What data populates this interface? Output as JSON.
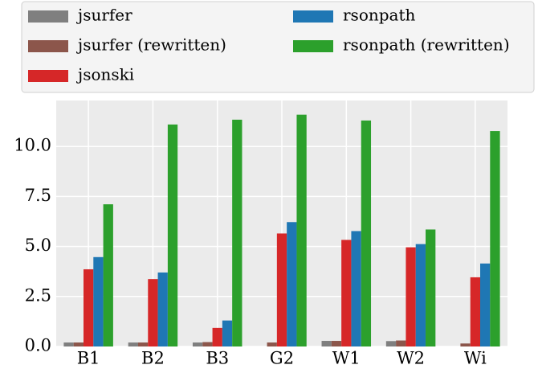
{
  "chart_data": {
    "type": "bar",
    "categories": [
      "B1",
      "B2",
      "B3",
      "G2",
      "W1",
      "W2",
      "Wi"
    ],
    "series": [
      {
        "name": "jsurfer",
        "color": "#7f7f7f",
        "values": [
          0.2,
          0.2,
          0.2,
          null,
          0.28,
          0.27,
          null
        ]
      },
      {
        "name": "jsurfer (rewritten)",
        "color": "#8c564b",
        "values": [
          0.2,
          0.2,
          0.22,
          0.2,
          0.28,
          0.3,
          0.15
        ]
      },
      {
        "name": "jsonski",
        "color": "#d62728",
        "values": [
          3.86,
          3.37,
          0.93,
          5.65,
          5.33,
          4.96,
          3.46
        ]
      },
      {
        "name": "rsonpath",
        "color": "#1f77b4",
        "values": [
          4.47,
          3.7,
          1.3,
          6.22,
          5.77,
          5.12,
          4.15
        ]
      },
      {
        "name": "rsonpath (rewritten)",
        "color": "#2ca02c",
        "values": [
          7.11,
          11.1,
          11.34,
          11.59,
          11.3,
          5.85,
          10.77
        ]
      }
    ],
    "ylim": [
      0,
      12.3
    ],
    "yticks": [
      {
        "value": 0,
        "label": "0.0"
      },
      2.5,
      {
        "value": 5,
        "label": "5.0"
      },
      7.5,
      {
        "value": 10,
        "label": "10.0"
      }
    ],
    "grid": true
  }
}
